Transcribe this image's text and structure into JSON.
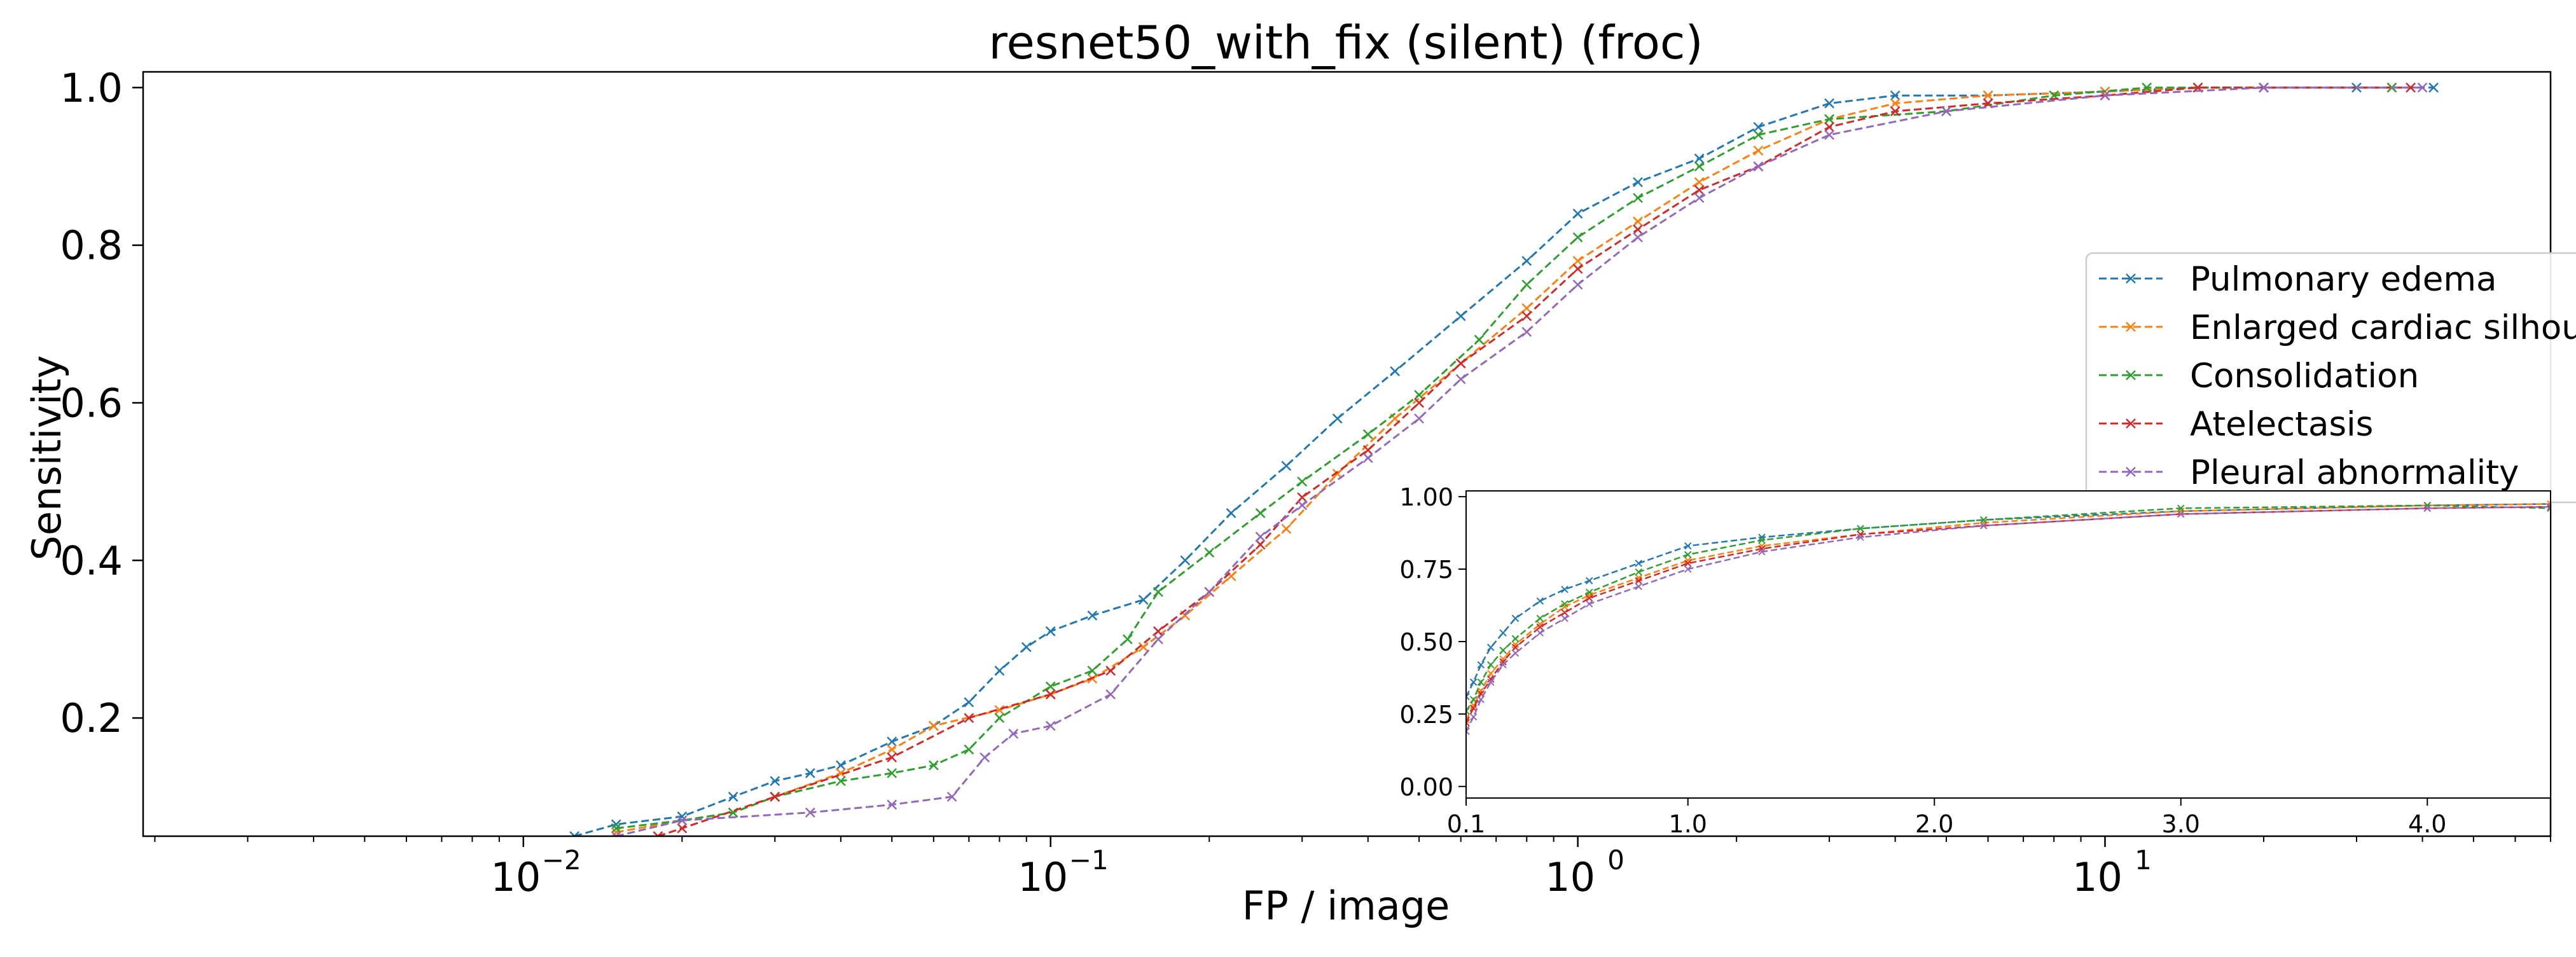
{
  "chart_data": [
    {
      "type": "line",
      "title": "resnet50_with_fix (silent) (froc)",
      "xlabel": "FP / image",
      "ylabel": "Sensitivity",
      "xscale": "log",
      "xlim": [
        0.0019,
        70
      ],
      "ylim": [
        0.05,
        1.02
      ],
      "x_tick_labels": [
        "10",
        "10",
        "10",
        "10"
      ],
      "x_tick_exponents": [
        "−2",
        "−1",
        "0",
        "1"
      ],
      "y_ticks": [
        "0.2",
        "0.4",
        "0.6",
        "0.8",
        "1.0"
      ],
      "legend_position": "right",
      "grid": false,
      "series": [
        {
          "name": "Pulmonary edema",
          "color": "#1f77b4",
          "x": [
            0.0125,
            0.015,
            0.02,
            0.025,
            0.03,
            0.035,
            0.04,
            0.05,
            0.06,
            0.07,
            0.08,
            0.09,
            0.1,
            0.12,
            0.15,
            0.18,
            0.22,
            0.28,
            0.35,
            0.45,
            0.6,
            0.8,
            1.0,
            1.3,
            1.7,
            2.2,
            3.0,
            4.0,
            6.0,
            10.0,
            15.0,
            20.0,
            30.0,
            42.0
          ],
          "y": [
            0.05,
            0.065,
            0.075,
            0.1,
            0.12,
            0.13,
            0.14,
            0.17,
            0.19,
            0.22,
            0.26,
            0.29,
            0.31,
            0.33,
            0.35,
            0.4,
            0.46,
            0.52,
            0.58,
            0.64,
            0.71,
            0.78,
            0.84,
            0.88,
            0.91,
            0.95,
            0.98,
            0.99,
            0.99,
            0.995,
            1.0,
            1.0,
            1.0,
            1.0
          ]
        },
        {
          "name": "Enlarged cardiac silhouette",
          "color": "#ff7f0e",
          "x": [
            0.015,
            0.02,
            0.025,
            0.03,
            0.04,
            0.05,
            0.06,
            0.08,
            0.1,
            0.12,
            0.15,
            0.18,
            0.22,
            0.28,
            0.35,
            0.45,
            0.6,
            0.8,
            1.0,
            1.3,
            1.7,
            2.2,
            3.0,
            4.0,
            6.0,
            10.0,
            15.0,
            20.0,
            35.0
          ],
          "y": [
            0.055,
            0.07,
            0.08,
            0.1,
            0.13,
            0.16,
            0.19,
            0.21,
            0.23,
            0.25,
            0.29,
            0.33,
            0.38,
            0.44,
            0.51,
            0.58,
            0.65,
            0.72,
            0.78,
            0.83,
            0.88,
            0.92,
            0.96,
            0.98,
            0.99,
            0.995,
            1.0,
            1.0,
            1.0
          ]
        },
        {
          "name": "Consolidation",
          "color": "#2ca02c",
          "x": [
            0.015,
            0.02,
            0.025,
            0.03,
            0.04,
            0.05,
            0.06,
            0.07,
            0.08,
            0.1,
            0.12,
            0.14,
            0.16,
            0.2,
            0.25,
            0.3,
            0.4,
            0.5,
            0.65,
            0.8,
            1.0,
            1.3,
            1.7,
            2.2,
            3.0,
            5.0,
            8.0,
            12.0,
            20.0,
            35.0
          ],
          "y": [
            0.06,
            0.07,
            0.08,
            0.1,
            0.12,
            0.13,
            0.14,
            0.16,
            0.2,
            0.24,
            0.26,
            0.3,
            0.36,
            0.41,
            0.46,
            0.5,
            0.56,
            0.61,
            0.68,
            0.75,
            0.81,
            0.86,
            0.9,
            0.94,
            0.96,
            0.97,
            0.99,
            1.0,
            1.0,
            1.0
          ]
        },
        {
          "name": "Atelectasis",
          "color": "#d62728",
          "x": [
            0.018,
            0.02,
            0.03,
            0.05,
            0.07,
            0.1,
            0.13,
            0.16,
            0.2,
            0.25,
            0.3,
            0.4,
            0.5,
            0.6,
            0.8,
            1.0,
            1.3,
            1.7,
            2.2,
            3.0,
            4.0,
            6.0,
            10.0,
            15.0,
            20.0,
            38.0
          ],
          "y": [
            0.05,
            0.06,
            0.1,
            0.15,
            0.2,
            0.23,
            0.26,
            0.31,
            0.36,
            0.42,
            0.48,
            0.54,
            0.6,
            0.65,
            0.71,
            0.77,
            0.82,
            0.87,
            0.9,
            0.95,
            0.97,
            0.98,
            0.99,
            1.0,
            1.0,
            1.0
          ]
        },
        {
          "name": "Pleural abnormality",
          "color": "#9467bd",
          "x": [
            0.015,
            0.02,
            0.035,
            0.05,
            0.065,
            0.075,
            0.085,
            0.1,
            0.13,
            0.16,
            0.2,
            0.25,
            0.3,
            0.4,
            0.5,
            0.6,
            0.8,
            1.0,
            1.3,
            1.7,
            2.2,
            3.0,
            5.0,
            10.0,
            20.0,
            40.0
          ],
          "y": [
            0.05,
            0.07,
            0.08,
            0.09,
            0.1,
            0.15,
            0.18,
            0.19,
            0.23,
            0.3,
            0.36,
            0.43,
            0.47,
            0.53,
            0.58,
            0.63,
            0.69,
            0.75,
            0.81,
            0.86,
            0.9,
            0.94,
            0.97,
            0.99,
            1.0,
            1.0
          ]
        }
      ]
    },
    {
      "type": "line",
      "title": "",
      "xlabel": "",
      "ylabel": "",
      "position": "inset",
      "xlim": [
        0.1,
        4.5
      ],
      "ylim": [
        -0.04,
        1.02
      ],
      "x_ticks": [
        "0.1",
        "1.0",
        "2.0",
        "3.0",
        "4.0"
      ],
      "y_ticks": [
        "0.00",
        "0.25",
        "0.50",
        "0.75",
        "1.00"
      ],
      "series": [
        {
          "name": "Pulmonary edema",
          "color": "#1f77b4",
          "x": [
            0.1,
            0.13,
            0.16,
            0.2,
            0.25,
            0.3,
            0.4,
            0.5,
            0.6,
            0.8,
            1.0,
            1.3,
            1.7,
            2.2,
            3.0,
            4.0,
            4.5
          ],
          "y": [
            0.31,
            0.36,
            0.42,
            0.48,
            0.53,
            0.58,
            0.64,
            0.68,
            0.71,
            0.77,
            0.83,
            0.86,
            0.89,
            0.92,
            0.95,
            0.97,
            0.975
          ]
        },
        {
          "name": "Enlarged cardiac silhouette",
          "color": "#ff7f0e",
          "x": [
            0.1,
            0.13,
            0.16,
            0.2,
            0.25,
            0.3,
            0.4,
            0.5,
            0.6,
            0.8,
            1.0,
            1.3,
            1.7,
            2.2,
            3.0,
            4.0,
            4.5
          ],
          "y": [
            0.23,
            0.28,
            0.33,
            0.39,
            0.44,
            0.49,
            0.56,
            0.62,
            0.66,
            0.72,
            0.78,
            0.83,
            0.87,
            0.91,
            0.95,
            0.97,
            0.975
          ]
        },
        {
          "name": "Consolidation",
          "color": "#2ca02c",
          "x": [
            0.1,
            0.13,
            0.16,
            0.2,
            0.25,
            0.3,
            0.4,
            0.5,
            0.6,
            0.8,
            1.0,
            1.3,
            1.7,
            2.2,
            3.0,
            4.0,
            4.5
          ],
          "y": [
            0.26,
            0.3,
            0.36,
            0.42,
            0.47,
            0.51,
            0.58,
            0.63,
            0.67,
            0.74,
            0.8,
            0.85,
            0.89,
            0.92,
            0.96,
            0.97,
            0.96
          ]
        },
        {
          "name": "Atelectasis",
          "color": "#d62728",
          "x": [
            0.1,
            0.13,
            0.16,
            0.2,
            0.25,
            0.3,
            0.4,
            0.5,
            0.6,
            0.8,
            1.0,
            1.3,
            1.7,
            2.2,
            3.0,
            4.0,
            4.5
          ],
          "y": [
            0.22,
            0.27,
            0.32,
            0.37,
            0.43,
            0.48,
            0.55,
            0.6,
            0.65,
            0.71,
            0.77,
            0.82,
            0.87,
            0.9,
            0.94,
            0.96,
            0.965
          ]
        },
        {
          "name": "Pleural abnormality",
          "color": "#9467bd",
          "x": [
            0.1,
            0.13,
            0.16,
            0.2,
            0.25,
            0.3,
            0.4,
            0.5,
            0.6,
            0.8,
            1.0,
            1.3,
            1.7,
            2.2,
            3.0,
            4.0,
            4.5
          ],
          "y": [
            0.19,
            0.24,
            0.3,
            0.36,
            0.42,
            0.46,
            0.53,
            0.58,
            0.63,
            0.69,
            0.75,
            0.81,
            0.86,
            0.9,
            0.94,
            0.96,
            0.965
          ]
        }
      ]
    }
  ]
}
